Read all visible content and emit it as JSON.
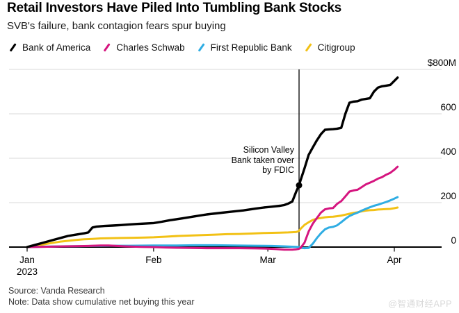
{
  "header": {
    "title": "Retail Investors Have Piled Into Tumbling Bank Stocks",
    "subtitle": "SVB's failure, bank contagion fears spur buying"
  },
  "footer": {
    "source": "Source: Vanda Research",
    "note": "Note: Data show cumulative net buying this year",
    "watermark": "@智通财经APP"
  },
  "chart_data": {
    "type": "line",
    "title": "Retail Investors Have Piled Into Tumbling Bank Stocks",
    "subtitle": "SVB's failure, bank contagion fears spur buying",
    "x_unit": "days since Jan 1 2023",
    "xlim": [
      -4.5,
      101.5
    ],
    "ylim": [
      -20,
      820
    ],
    "grid": "horizontal",
    "legend_position": "top",
    "y_axis": {
      "side": "right",
      "gridline_values": [
        800,
        600,
        400,
        200
      ],
      "ticks": [
        {
          "label": "$800M",
          "value": 800
        },
        {
          "label": "600",
          "value": 600
        },
        {
          "label": "400",
          "value": 400
        },
        {
          "label": "200",
          "value": 200
        },
        {
          "label": "0",
          "value": 0
        }
      ]
    },
    "x_axis": {
      "ticks": [
        {
          "label": "Jan",
          "day": 0
        },
        {
          "label": "Feb",
          "day": 31
        },
        {
          "label": "Mar",
          "day": 59
        },
        {
          "label": "Apr",
          "day": 90
        }
      ],
      "year_label": {
        "label": "2023",
        "day": 0
      }
    },
    "annotation": {
      "text": "Silicon Valley\nBank taken over\nby FDIC",
      "event_day": 66.65
    },
    "event": {
      "day": 66.65,
      "dot_value": 278,
      "line_top_value": 800
    },
    "colors": {
      "grid": "#d8d8d8",
      "axis": "#000000"
    },
    "series": [
      {
        "name": "Citigroup",
        "color": "#f2c115",
        "points": [
          [
            0,
            0
          ],
          [
            2,
            6
          ],
          [
            4,
            12
          ],
          [
            6,
            18
          ],
          [
            8,
            24
          ],
          [
            10,
            28
          ],
          [
            12,
            32
          ],
          [
            14,
            35
          ],
          [
            16,
            37
          ],
          [
            18,
            39
          ],
          [
            20,
            40
          ],
          [
            23,
            41
          ],
          [
            26,
            42
          ],
          [
            29,
            43
          ],
          [
            31,
            44
          ],
          [
            34,
            47
          ],
          [
            37,
            50
          ],
          [
            40,
            52
          ],
          [
            43,
            54
          ],
          [
            46,
            56
          ],
          [
            49,
            58
          ],
          [
            52,
            59
          ],
          [
            55,
            61
          ],
          [
            58,
            63
          ],
          [
            60,
            64
          ],
          [
            62,
            65
          ],
          [
            64,
            66
          ],
          [
            65,
            67
          ],
          [
            66,
            68
          ],
          [
            66.6,
            72
          ],
          [
            67,
            82
          ],
          [
            68,
            100
          ],
          [
            69,
            112
          ],
          [
            70,
            122
          ],
          [
            71,
            128
          ],
          [
            72,
            131
          ],
          [
            73,
            134
          ],
          [
            74,
            136
          ],
          [
            75,
            137
          ],
          [
            76,
            139
          ],
          [
            77,
            142
          ],
          [
            78,
            146
          ],
          [
            79,
            150
          ],
          [
            80,
            154
          ],
          [
            81,
            157
          ],
          [
            82,
            161
          ],
          [
            83,
            164
          ],
          [
            84,
            166
          ],
          [
            85,
            167
          ],
          [
            86,
            169
          ],
          [
            87,
            170
          ],
          [
            88,
            171
          ],
          [
            89,
            172
          ],
          [
            90,
            175
          ],
          [
            90.8,
            178
          ]
        ]
      },
      {
        "name": "First Republic Bank",
        "color": "#2fade3",
        "points": [
          [
            0,
            0
          ],
          [
            4,
            2
          ],
          [
            8,
            3
          ],
          [
            12,
            4
          ],
          [
            16,
            5
          ],
          [
            20,
            6
          ],
          [
            25,
            6
          ],
          [
            31,
            7
          ],
          [
            36,
            7
          ],
          [
            41,
            8
          ],
          [
            46,
            8
          ],
          [
            51,
            7
          ],
          [
            56,
            6
          ],
          [
            60,
            5
          ],
          [
            63,
            3
          ],
          [
            66,
            1
          ],
          [
            66.6,
            0
          ],
          [
            67,
            -3
          ],
          [
            68,
            -5
          ],
          [
            69,
            -4
          ],
          [
            70,
            15
          ],
          [
            71,
            40
          ],
          [
            72,
            62
          ],
          [
            73,
            80
          ],
          [
            74,
            88
          ],
          [
            75,
            91
          ],
          [
            76,
            98
          ],
          [
            77,
            112
          ],
          [
            78,
            127
          ],
          [
            79,
            140
          ],
          [
            80,
            148
          ],
          [
            81,
            155
          ],
          [
            82,
            164
          ],
          [
            83,
            172
          ],
          [
            84,
            179
          ],
          [
            85,
            186
          ],
          [
            86,
            191
          ],
          [
            87,
            197
          ],
          [
            88,
            203
          ],
          [
            89,
            210
          ],
          [
            90,
            218
          ],
          [
            90.8,
            225
          ]
        ]
      },
      {
        "name": "Charles Schwab",
        "color": "#d5157f",
        "points": [
          [
            0,
            0
          ],
          [
            3,
            1
          ],
          [
            6,
            2
          ],
          [
            9,
            3
          ],
          [
            12,
            4
          ],
          [
            15,
            5
          ],
          [
            18,
            7
          ],
          [
            20,
            7
          ],
          [
            22,
            5
          ],
          [
            24,
            3
          ],
          [
            26,
            2
          ],
          [
            28,
            1
          ],
          [
            31,
            0
          ],
          [
            34,
            -2
          ],
          [
            37,
            -3
          ],
          [
            40,
            -4
          ],
          [
            44,
            -5
          ],
          [
            48,
            -5
          ],
          [
            52,
            -5
          ],
          [
            56,
            -6
          ],
          [
            59,
            -7
          ],
          [
            61,
            -9
          ],
          [
            63,
            -12
          ],
          [
            65,
            -12
          ],
          [
            66,
            -10
          ],
          [
            66.6,
            -8
          ],
          [
            67,
            -4
          ],
          [
            68,
            20
          ],
          [
            69,
            70
          ],
          [
            70,
            105
          ],
          [
            71,
            130
          ],
          [
            72,
            155
          ],
          [
            73,
            170
          ],
          [
            74,
            174
          ],
          [
            75,
            176
          ],
          [
            76,
            195
          ],
          [
            77,
            207
          ],
          [
            78,
            228
          ],
          [
            79,
            250
          ],
          [
            80,
            255
          ],
          [
            81,
            258
          ],
          [
            82,
            270
          ],
          [
            83,
            282
          ],
          [
            84,
            290
          ],
          [
            85,
            298
          ],
          [
            86,
            308
          ],
          [
            87,
            315
          ],
          [
            88,
            326
          ],
          [
            89,
            334
          ],
          [
            90,
            348
          ],
          [
            90.8,
            362
          ]
        ]
      },
      {
        "name": "Bank of America",
        "color": "#000000",
        "points": [
          [
            0,
            0
          ],
          [
            2,
            10
          ],
          [
            4,
            20
          ],
          [
            6,
            30
          ],
          [
            8,
            40
          ],
          [
            10,
            50
          ],
          [
            12,
            56
          ],
          [
            14,
            62
          ],
          [
            15,
            66
          ],
          [
            16,
            88
          ],
          [
            17,
            92
          ],
          [
            19,
            95
          ],
          [
            21,
            97
          ],
          [
            23,
            99
          ],
          [
            25,
            102
          ],
          [
            27,
            104
          ],
          [
            29,
            106
          ],
          [
            31,
            108
          ],
          [
            33,
            114
          ],
          [
            35,
            121
          ],
          [
            38,
            129
          ],
          [
            41,
            138
          ],
          [
            44,
            147
          ],
          [
            47,
            153
          ],
          [
            50,
            159
          ],
          [
            53,
            165
          ],
          [
            56,
            173
          ],
          [
            58,
            178
          ],
          [
            60,
            182
          ],
          [
            62,
            186
          ],
          [
            63,
            189
          ],
          [
            64,
            196
          ],
          [
            65,
            205
          ],
          [
            66,
            252
          ],
          [
            66.65,
            278
          ],
          [
            67,
            300
          ],
          [
            68,
            355
          ],
          [
            69,
            415
          ],
          [
            70,
            448
          ],
          [
            71,
            480
          ],
          [
            72,
            508
          ],
          [
            73,
            528
          ],
          [
            74,
            530
          ],
          [
            75,
            531
          ],
          [
            76,
            533
          ],
          [
            77,
            537
          ],
          [
            78,
            600
          ],
          [
            79,
            650
          ],
          [
            80,
            655
          ],
          [
            81,
            657
          ],
          [
            82,
            664
          ],
          [
            83,
            667
          ],
          [
            84,
            670
          ],
          [
            85,
            700
          ],
          [
            86,
            718
          ],
          [
            87,
            724
          ],
          [
            88,
            727
          ],
          [
            89,
            730
          ],
          [
            90,
            748
          ],
          [
            90.8,
            763
          ]
        ]
      }
    ],
    "legend_order": [
      3,
      2,
      1,
      0
    ]
  }
}
